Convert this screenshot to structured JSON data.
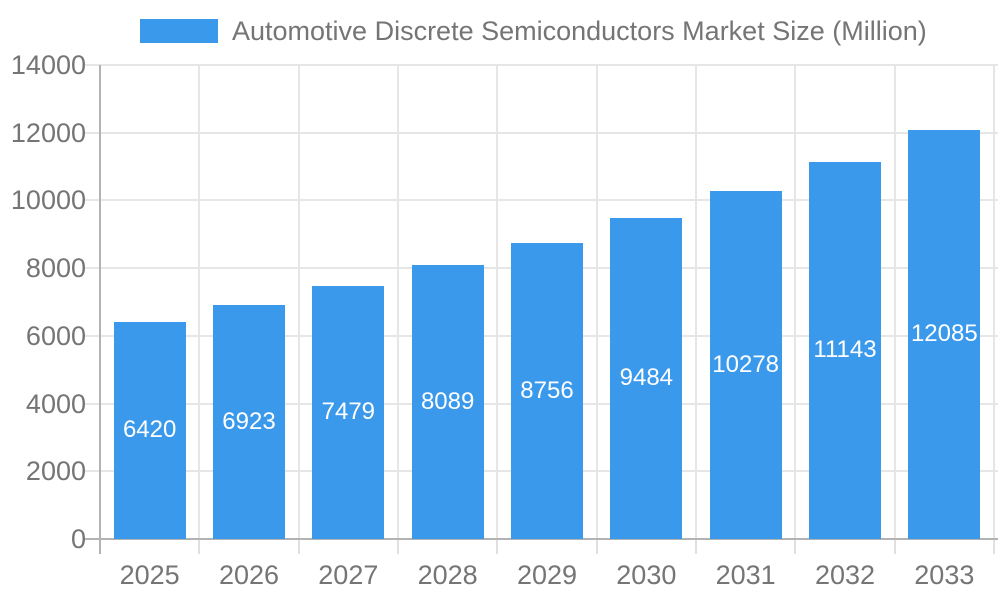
{
  "chart_data": {
    "type": "bar",
    "title": "Automotive Discrete Semiconductors Market Size (Million)",
    "legend": {
      "position": "top-left",
      "entries": [
        "Automotive Discrete Semiconductors Market Size (Million)"
      ]
    },
    "categories": [
      "2025",
      "2026",
      "2027",
      "2028",
      "2029",
      "2030",
      "2031",
      "2032",
      "2033"
    ],
    "series": [
      {
        "name": "Automotive Discrete Semiconductors Market Size (Million)",
        "values": [
          6420,
          6923,
          7479,
          8089,
          8756,
          9484,
          10278,
          11143,
          12085
        ]
      }
    ],
    "xlabel": "",
    "ylabel": "",
    "ylim": [
      0,
      14000
    ],
    "yticks": [
      0,
      2000,
      4000,
      6000,
      8000,
      10000,
      12000,
      14000
    ],
    "grid": true,
    "bar_value_labels": "centered inside bars",
    "colors": {
      "bar": "#3b99ec",
      "bar_label": "#ffffff",
      "tick_text": "#757575",
      "grid": "#e6e6e6",
      "axis": "#b3b3b3",
      "background": "#ffffff"
    }
  }
}
